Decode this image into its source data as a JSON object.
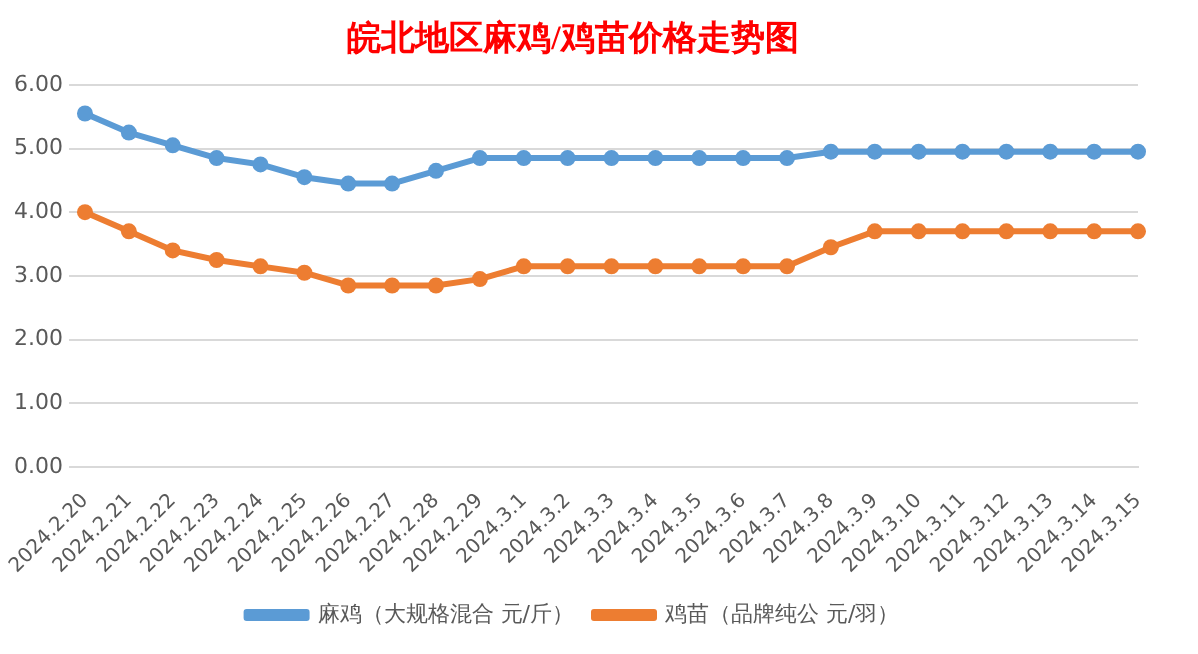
{
  "chart_data": {
    "type": "line",
    "title": "皖北地区麻鸡/鸡苗价格走势图",
    "categories": [
      "2024.2.20",
      "2024.2.21",
      "2024.2.22",
      "2024.2.23",
      "2024.2.24",
      "2024.2.25",
      "2024.2.26",
      "2024.2.27",
      "2024.2.28",
      "2024.2.29",
      "2024.3.1",
      "2024.3.2",
      "2024.3.3",
      "2024.3.4",
      "2024.3.5",
      "2024.3.6",
      "2024.3.7",
      "2024.3.8",
      "2024.3.9",
      "2024.3.10",
      "2024.3.11",
      "2024.3.12",
      "2024.3.13",
      "2024.3.14",
      "2024.3.15"
    ],
    "series": [
      {
        "name": "麻鸡（大规格混合 元/斤）",
        "color": "#5b9bd5",
        "values": [
          5.55,
          5.25,
          5.05,
          4.85,
          4.75,
          4.55,
          4.45,
          4.45,
          4.65,
          4.85,
          4.85,
          4.85,
          4.85,
          4.85,
          4.85,
          4.85,
          4.85,
          4.95,
          4.95,
          4.95,
          4.95,
          4.95,
          4.95,
          4.95,
          4.95
        ]
      },
      {
        "name": "鸡苗（品牌纯公 元/羽）",
        "color": "#ed7d31",
        "values": [
          4.0,
          3.7,
          3.4,
          3.25,
          3.15,
          3.05,
          2.85,
          2.85,
          2.85,
          2.95,
          3.15,
          3.15,
          3.15,
          3.15,
          3.15,
          3.15,
          3.15,
          3.45,
          3.7,
          3.7,
          3.7,
          3.7,
          3.7,
          3.7,
          3.7
        ]
      }
    ],
    "ylim": [
      0,
      6
    ],
    "yticks": [
      {
        "value": 0,
        "label": "0.00"
      },
      {
        "value": 1,
        "label": "1.00"
      },
      {
        "value": 2,
        "label": "2.00"
      },
      {
        "value": 3,
        "label": "3.00"
      },
      {
        "value": 4,
        "label": "4.00"
      },
      {
        "value": 5,
        "label": "5.00"
      },
      {
        "value": 6,
        "label": "6.00"
      }
    ],
    "grid": "y",
    "legend": "bottom",
    "marker": "circle",
    "line_style": "solid"
  }
}
